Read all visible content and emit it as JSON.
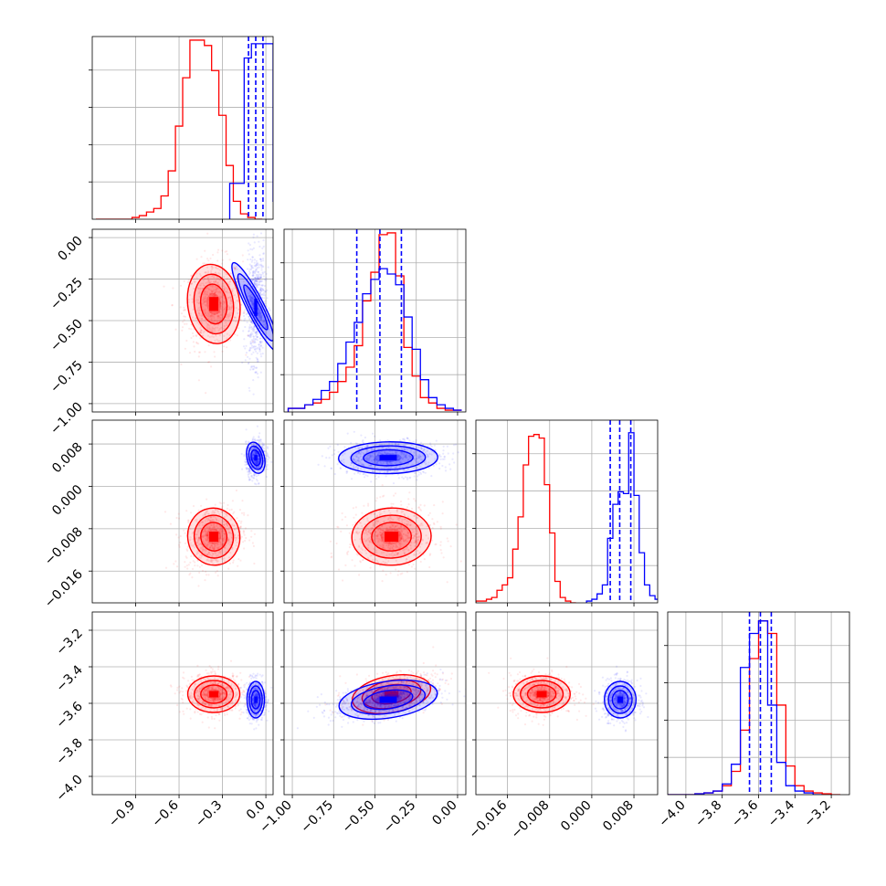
{
  "colors": {
    "series_a": "#ff0000",
    "series_b": "#0000ff",
    "grid": "#b0b0b0"
  },
  "chart_data": {
    "type": "corner",
    "title": "",
    "parameters": [
      {
        "index": 0,
        "range": [
          -1.2,
          0.05
        ],
        "ticks": [
          -0.9,
          -0.6,
          -0.3,
          0.0
        ],
        "tick_labels": [
          "−0.9",
          "−0.6",
          "−0.3",
          "0.0"
        ]
      },
      {
        "index": 1,
        "range": [
          -1.05,
          0.05
        ],
        "ticks": [
          -1.0,
          -0.75,
          -0.5,
          -0.25,
          0.0
        ],
        "tick_labels": [
          "−1.00",
          "−0.75",
          "−0.50",
          "−0.25",
          "0.00"
        ]
      },
      {
        "index": 2,
        "range": [
          -0.022,
          0.0125
        ],
        "ticks": [
          -0.016,
          -0.008,
          0.0,
          0.008
        ],
        "tick_labels": [
          "−0.016",
          "−0.008",
          "0.000",
          "0.008"
        ]
      },
      {
        "index": 3,
        "range": [
          -4.1,
          -3.1
        ],
        "ticks": [
          -4.0,
          -3.8,
          -3.6,
          -3.4,
          -3.2
        ],
        "tick_labels": [
          "−4.0",
          "−3.8",
          "−3.6",
          "−3.4",
          "−3.2"
        ]
      }
    ],
    "series": [
      {
        "color": "#ff0000",
        "means": [
          -0.36,
          -0.4,
          -0.0095,
          -3.55
        ],
        "sds": [
          0.09,
          0.12,
          0.0027,
          0.05
        ],
        "histograms": [
          {
            "x": [
              -1.15,
              -1.1,
              -1.05,
              -1.0,
              -0.95,
              -0.9,
              -0.85,
              -0.8,
              -0.75,
              -0.7,
              -0.65,
              -0.6,
              -0.55,
              -0.5,
              -0.45,
              -0.4,
              -0.35,
              -0.3,
              -0.25,
              -0.2,
              -0.15,
              -0.1,
              -0.05
            ],
            "y": [
              0,
              0,
              0,
              0,
              0,
              0.01,
              0.02,
              0.04,
              0.06,
              0.13,
              0.27,
              0.52,
              0.79,
              1.0,
              1.0,
              0.97,
              0.83,
              0.58,
              0.3,
              0.1,
              0.03,
              0.01,
              0
            ]
          },
          {
            "x": [
              -1.0,
              -0.95,
              -0.9,
              -0.85,
              -0.8,
              -0.75,
              -0.7,
              -0.65,
              -0.6,
              -0.55,
              -0.5,
              -0.45,
              -0.4,
              -0.35,
              -0.3,
              -0.25,
              -0.2,
              -0.15,
              -0.1,
              -0.05,
              0.0
            ],
            "y": [
              0.02,
              0.02,
              0.04,
              0.05,
              0.07,
              0.11,
              0.17,
              0.25,
              0.37,
              0.62,
              0.78,
              0.99,
              1.0,
              0.76,
              0.36,
              0.2,
              0.08,
              0.05,
              0.02,
              0.01,
              0.01
            ]
          },
          {
            "x": [
              -0.0215,
              -0.0205,
              -0.0195,
              -0.0185,
              -0.0175,
              -0.0165,
              -0.0155,
              -0.0145,
              -0.0135,
              -0.0125,
              -0.0115,
              -0.0105,
              -0.0095,
              -0.0085,
              -0.0075,
              -0.0065,
              -0.0055,
              -0.0045,
              -0.0035
            ],
            "y": [
              0.01,
              0.01,
              0.02,
              0.03,
              0.07,
              0.1,
              0.14,
              0.3,
              0.48,
              0.77,
              0.93,
              0.94,
              0.92,
              0.66,
              0.39,
              0.12,
              0.03,
              0.01,
              0
            ]
          },
          {
            "x": [
              -4.075,
              -4.025,
              -3.975,
              -3.925,
              -3.875,
              -3.825,
              -3.775,
              -3.725,
              -3.675,
              -3.625,
              -3.575,
              -3.525,
              -3.475,
              -3.425,
              -3.375,
              -3.325,
              -3.275,
              -3.225,
              -3.175
            ],
            "y": [
              0,
              0,
              0,
              0.005,
              0.01,
              0.02,
              0.05,
              0.13,
              0.36,
              0.76,
              0.97,
              0.9,
              0.5,
              0.16,
              0.05,
              0.02,
              0.01,
              0.005,
              0
            ]
          }
        ]
      },
      {
        "color": "#0000ff",
        "means": [
          -0.07,
          -0.42,
          0.0054,
          -3.58
        ],
        "sds": [
          0.03,
          0.15,
          0.0015,
          0.05
        ],
        "quantiles": [
          [
            -0.12,
            -0.07,
            -0.02
          ],
          [
            -0.61,
            -0.47,
            -0.34
          ],
          [
            0.0035,
            0.0053,
            0.0074
          ],
          [
            -3.65,
            -3.59,
            -3.53
          ]
        ],
        "histograms": [
          {
            "x": [
              -0.225,
              -0.175,
              -0.125,
              -0.075,
              -0.025,
              0.025,
              0.075
            ],
            "y": [
              0.2,
              0.2,
              0.9,
              0.98,
              0.98,
              0.98,
              0.1
            ]
          },
          {
            "x": [
              -1.0,
              -0.95,
              -0.9,
              -0.85,
              -0.8,
              -0.75,
              -0.7,
              -0.65,
              -0.6,
              -0.55,
              -0.5,
              -0.45,
              -0.4,
              -0.35,
              -0.3,
              -0.25,
              -0.2,
              -0.15,
              -0.1,
              -0.05,
              0.0
            ],
            "y": [
              0.02,
              0.02,
              0.04,
              0.07,
              0.12,
              0.17,
              0.27,
              0.39,
              0.5,
              0.66,
              0.74,
              0.8,
              0.77,
              0.71,
              0.53,
              0.35,
              0.18,
              0.08,
              0.04,
              0.02,
              0.01
            ]
          },
          {
            "x": [
              -0.0005,
              0.0005,
              0.0015,
              0.0025,
              0.0035,
              0.0045,
              0.0055,
              0.0065,
              0.0075,
              0.0085,
              0.0095,
              0.0105,
              0.0115,
              0.0125
            ],
            "y": [
              0.01,
              0.02,
              0.05,
              0.1,
              0.36,
              0.55,
              0.62,
              0.61,
              0.95,
              0.6,
              0.28,
              0.1,
              0.04,
              0.02
            ]
          },
          {
            "x": [
              -4.075,
              -4.025,
              -3.975,
              -3.925,
              -3.875,
              -3.825,
              -3.775,
              -3.725,
              -3.675,
              -3.625,
              -3.575,
              -3.525,
              -3.475,
              -3.425,
              -3.375,
              -3.325,
              -3.275
            ],
            "y": [
              0,
              0,
              0,
              0.005,
              0.01,
              0.02,
              0.06,
              0.17,
              0.71,
              0.9,
              0.97,
              0.5,
              0.18,
              0.05,
              0.02,
              0.01,
              0
            ]
          }
        ]
      }
    ]
  }
}
